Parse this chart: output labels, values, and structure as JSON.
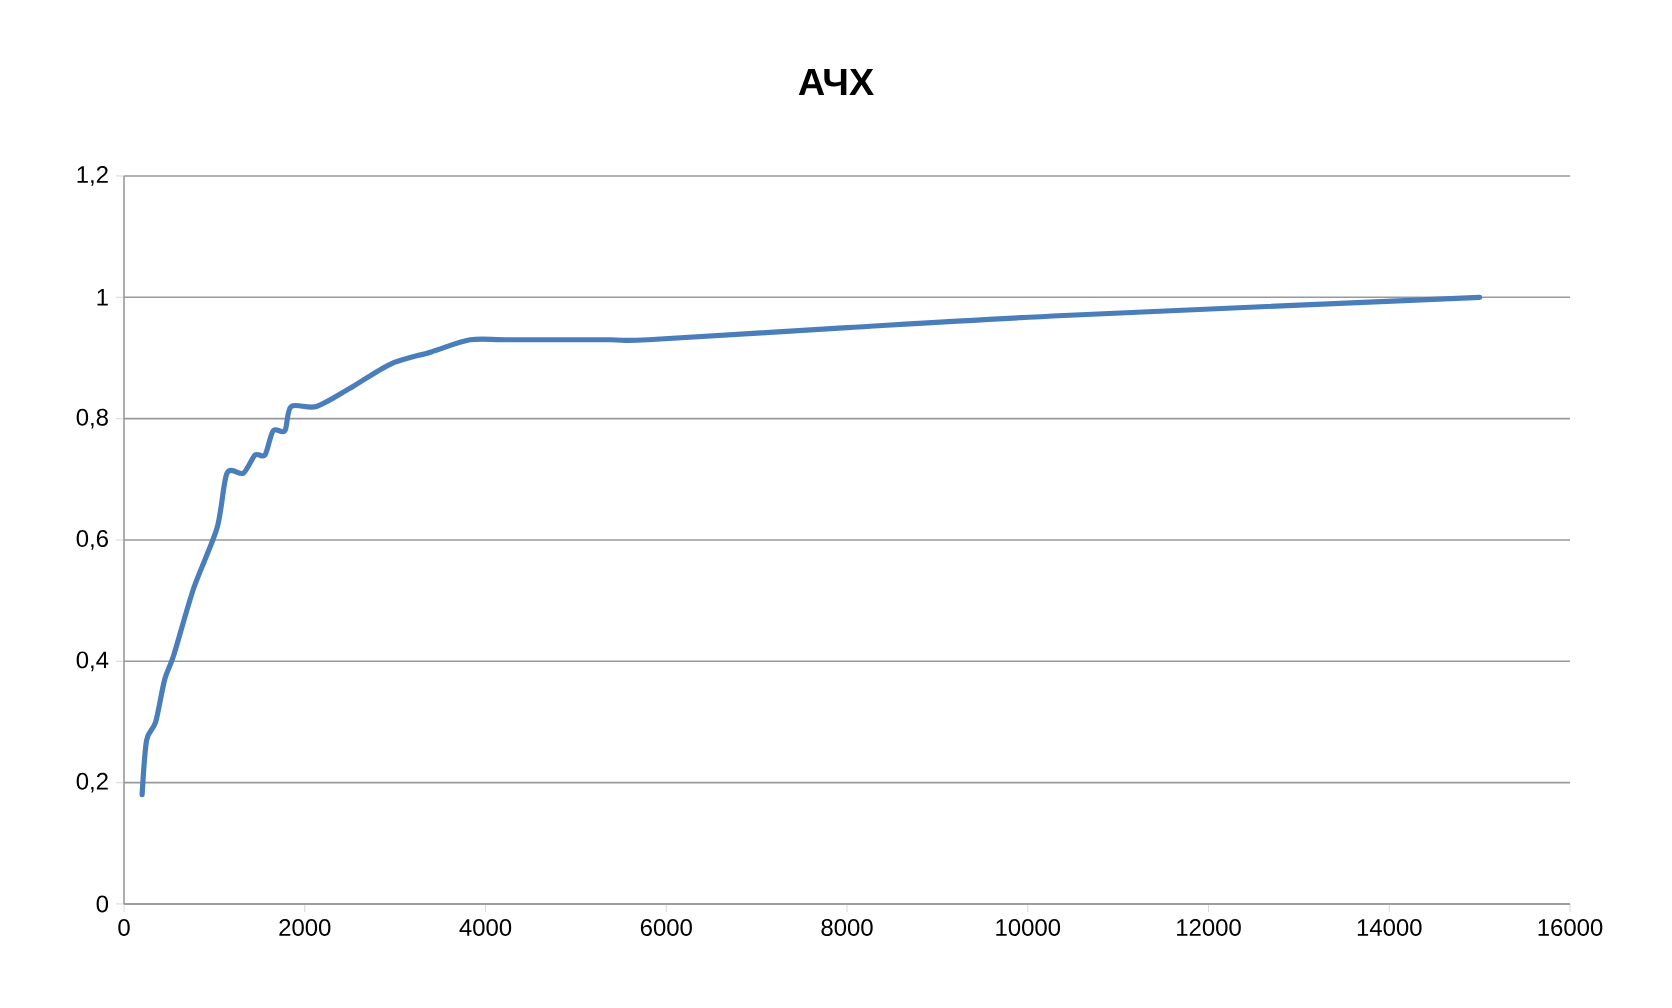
{
  "chart_data": {
    "type": "line",
    "title": "АЧХ",
    "x": [
      200,
      250,
      350,
      450,
      550,
      770,
      1030,
      1140,
      1320,
      1450,
      1560,
      1650,
      1780,
      1850,
      2130,
      2500,
      2950,
      3400,
      3830,
      4270,
      5380,
      5800,
      8000,
      10400,
      15000
    ],
    "series": [
      {
        "color": "#4a7ebb",
        "values": [
          0.18,
          0.27,
          0.3,
          0.37,
          0.41,
          0.52,
          0.62,
          0.71,
          0.71,
          0.74,
          0.74,
          0.78,
          0.78,
          0.82,
          0.82,
          0.85,
          0.89,
          0.91,
          0.93,
          0.93,
          0.93,
          0.93,
          0.95,
          0.97,
          1.0
        ]
      }
    ],
    "xlim": [
      0,
      16000
    ],
    "xticks": [
      0,
      2000,
      4000,
      6000,
      8000,
      10000,
      12000,
      14000,
      16000
    ],
    "ylim": [
      0,
      1.2
    ],
    "yticks": [
      0,
      {
        "value": 0.2,
        "label": "0,2"
      },
      {
        "value": 0.4,
        "label": "0,4"
      },
      {
        "value": 0.6,
        "label": "0,6"
      },
      {
        "value": 0.8,
        "label": "0,8"
      },
      1,
      {
        "value": 1.2,
        "label": "1,2"
      }
    ],
    "grid": "y",
    "marker": "none",
    "line_style": "solid"
  }
}
